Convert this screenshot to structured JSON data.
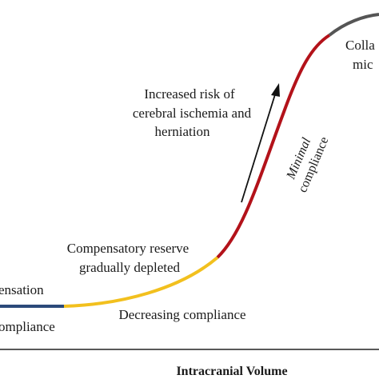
{
  "x_axis_label": "Intracranial Volume",
  "annotations": {
    "risk_line1": "Increased risk of",
    "risk_line2": "cerebral ischemia and",
    "risk_line3": "herniation",
    "minimal_line1": "Minimal",
    "minimal_line2": "compliance",
    "collapse_line1": "Colla",
    "collapse_line2": "mic",
    "reserve_line1": "Compensatory reserve",
    "reserve_line2": "gradually depleted",
    "compensation": "ensation",
    "compliance_left": "ompliance",
    "decreasing": "Decreasing compliance"
  },
  "segment_colors": {
    "high_compliance": "#2b4a7a",
    "decreasing_compliance": "#f2c01e",
    "minimal_compliance": "#b3121a",
    "collapse": "#555555",
    "axis": "#222222",
    "arrow": "#111111"
  }
}
